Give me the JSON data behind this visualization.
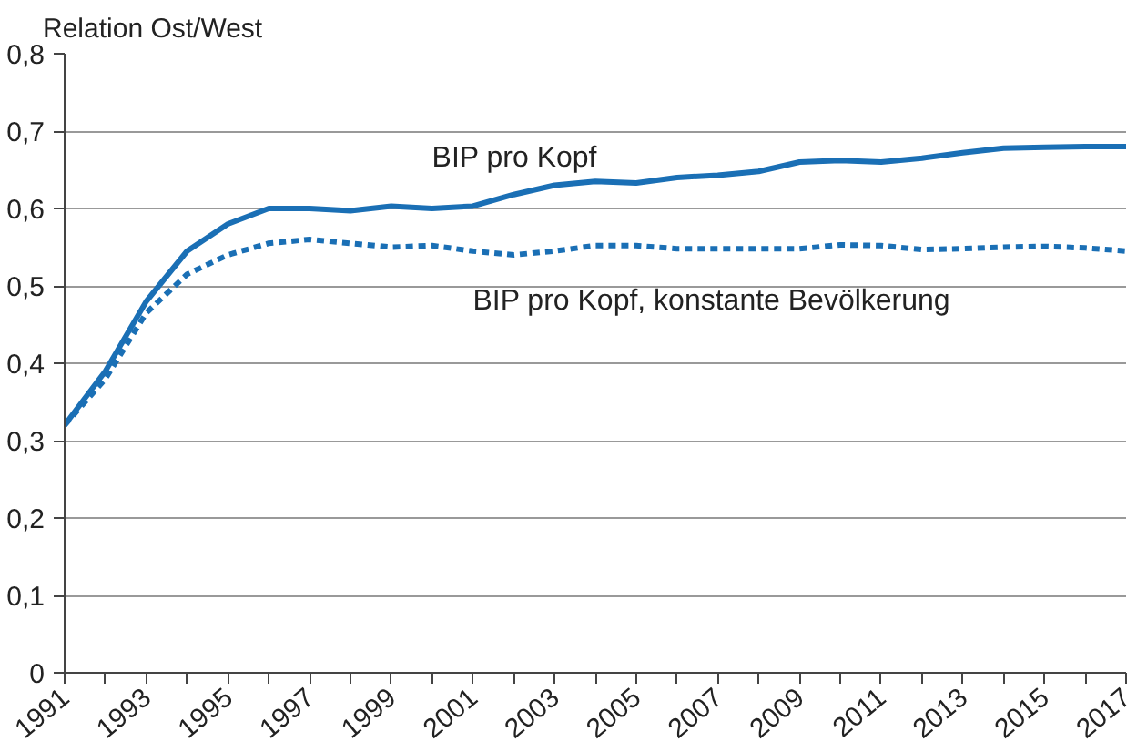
{
  "chart_data": {
    "type": "line",
    "ylabel": "Relation Ost/West",
    "x": [
      1991,
      1992,
      1993,
      1994,
      1995,
      1996,
      1997,
      1998,
      1999,
      2000,
      2001,
      2002,
      2003,
      2004,
      2005,
      2006,
      2007,
      2008,
      2009,
      2010,
      2011,
      2012,
      2013,
      2014,
      2015,
      2016,
      2017
    ],
    "series": [
      {
        "name": "BIP pro Kopf",
        "color": "#1a6fb5",
        "line_style": "solid",
        "values": [
          0.32,
          0.39,
          0.48,
          0.545,
          0.58,
          0.6,
          0.6,
          0.597,
          0.603,
          0.6,
          0.603,
          0.618,
          0.63,
          0.635,
          0.633,
          0.64,
          0.643,
          0.648,
          0.66,
          0.662,
          0.66,
          0.665,
          0.672,
          0.678,
          0.679,
          0.68,
          0.68
        ]
      },
      {
        "name": "BIP pro Kopf, konstante Bevölkerung",
        "color": "#1a6fb5",
        "line_style": "dashed",
        "values": [
          0.32,
          0.38,
          0.465,
          0.515,
          0.54,
          0.555,
          0.56,
          0.555,
          0.55,
          0.552,
          0.545,
          0.54,
          0.545,
          0.552,
          0.552,
          0.548,
          0.548,
          0.548,
          0.548,
          0.553,
          0.552,
          0.547,
          0.548,
          0.55,
          0.551,
          0.549,
          0.545
        ]
      }
    ],
    "xlim": [
      1991,
      2017
    ],
    "xticks": [
      1991,
      {
        "value": 1992,
        "label": null
      },
      1993,
      {
        "value": 1994,
        "label": null
      },
      1995,
      {
        "value": 1996,
        "label": null
      },
      1997,
      {
        "value": 1998,
        "label": null
      },
      1999,
      {
        "value": 2000,
        "label": null
      },
      2001,
      {
        "value": 2002,
        "label": null
      },
      2003,
      {
        "value": 2004,
        "label": null
      },
      2005,
      {
        "value": 2006,
        "label": null
      },
      2007,
      {
        "value": 2008,
        "label": null
      },
      2009,
      {
        "value": 2010,
        "label": null
      },
      2011,
      {
        "value": 2012,
        "label": null
      },
      2013,
      {
        "value": 2014,
        "label": null
      },
      2015,
      {
        "value": 2016,
        "label": null
      },
      2017
    ],
    "ylim": [
      0,
      0.8
    ],
    "yticks": [
      0,
      {
        "value": 0.1,
        "label": "0,1"
      },
      {
        "value": 0.2,
        "label": "0,2"
      },
      {
        "value": 0.3,
        "label": "0,3"
      },
      {
        "value": 0.4,
        "label": "0,4"
      },
      {
        "value": 0.5,
        "label": "0,5"
      },
      {
        "value": 0.6,
        "label": "0,6"
      },
      {
        "value": 0.7,
        "label": "0,7"
      },
      {
        "value": 0.8,
        "label": "0,8"
      }
    ],
    "grid": "y",
    "marker": "none"
  }
}
